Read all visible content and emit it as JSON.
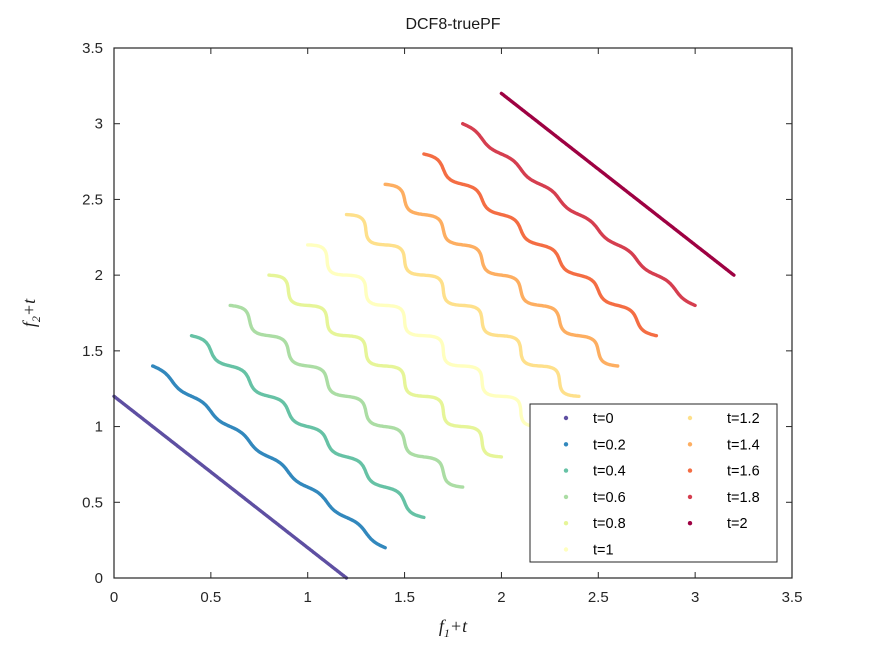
{
  "chart_data": {
    "type": "scatter",
    "title": "DCF8-truePF",
    "xlabel": "f_1+t",
    "ylabel": "f_2+t",
    "xlabel_parts": {
      "base": "f",
      "sub": "1",
      "rest": "+t"
    },
    "ylabel_parts": {
      "base": "f",
      "sub": "2",
      "rest": "+t"
    },
    "xlim": [
      0,
      3.5
    ],
    "ylim": [
      0,
      3.5
    ],
    "xticks": [
      "0",
      "0.5",
      "1",
      "1.5",
      "2",
      "2.5",
      "3",
      "3.5"
    ],
    "yticks": [
      "0",
      "0.5",
      "1",
      "1.5",
      "2",
      "2.5",
      "3",
      "3.5"
    ],
    "xtick_values": [
      0,
      0.5,
      1,
      1.5,
      2,
      2.5,
      3,
      3.5
    ],
    "ytick_values": [
      0,
      0.5,
      1,
      1.5,
      2,
      2.5,
      3,
      3.5
    ],
    "grid": false,
    "axis_color": "#262626",
    "background": "#ffffff",
    "curve_model": {
      "description": "Each series is the true Pareto front at time t shifted by t on both axes: base line from (t, t+1.2) to (t+1.2, t), i.e. points (t+s, t+1.2-s) for s in [0, s_max], with a sinusoidal ripple of 'periods' cycles applied perpendicular to the line. Ripple amplitude = amp_max*sin(pi*t/2), so t=0 and t=2 are straight lines and t=1 is the waviest.",
      "s_max": 1.2,
      "periods": 6,
      "amp_max": 0.04
    },
    "series": [
      {
        "label": "t=0",
        "t": 0,
        "color": "#5e4fa2",
        "amplitude": 0,
        "start": [
          0,
          1.2
        ],
        "end": [
          1.2,
          0
        ]
      },
      {
        "label": "t=0.2",
        "t": 0.2,
        "color": "#3288bd",
        "amplitude": 0.0124,
        "start": [
          0.2,
          1.4
        ],
        "end": [
          1.4,
          0.2
        ]
      },
      {
        "label": "t=0.4",
        "t": 0.4,
        "color": "#66c2a5",
        "amplitude": 0.0235,
        "start": [
          0.4,
          1.6
        ],
        "end": [
          1.6,
          0.4
        ]
      },
      {
        "label": "t=0.6",
        "t": 0.6,
        "color": "#abdda4",
        "amplitude": 0.0324,
        "start": [
          0.6,
          1.8
        ],
        "end": [
          1.8,
          0.6
        ]
      },
      {
        "label": "t=0.8",
        "t": 0.8,
        "color": "#e6f598",
        "amplitude": 0.038,
        "start": [
          0.8,
          2.0
        ],
        "end": [
          2.0,
          0.8
        ]
      },
      {
        "label": "t=1",
        "t": 1,
        "color": "#ffffbf",
        "amplitude": 0.04,
        "start": [
          1.0,
          2.2
        ],
        "end": [
          2.2,
          1.0
        ]
      },
      {
        "label": "t=1.2",
        "t": 1.2,
        "color": "#fee08b",
        "amplitude": 0.038,
        "start": [
          1.2,
          2.4
        ],
        "end": [
          2.4,
          1.2
        ]
      },
      {
        "label": "t=1.4",
        "t": 1.4,
        "color": "#fdae61",
        "amplitude": 0.0324,
        "start": [
          1.4,
          2.6
        ],
        "end": [
          2.6,
          1.4
        ]
      },
      {
        "label": "t=1.6",
        "t": 1.6,
        "color": "#f46d43",
        "amplitude": 0.0235,
        "start": [
          1.6,
          2.8
        ],
        "end": [
          2.8,
          1.6
        ]
      },
      {
        "label": "t=1.8",
        "t": 1.8,
        "color": "#d53e4f",
        "amplitude": 0.0124,
        "start": [
          1.8,
          3.0
        ],
        "end": [
          3.0,
          1.8
        ]
      },
      {
        "label": "t=2",
        "t": 2,
        "color": "#9e0142",
        "amplitude": 0,
        "start": [
          2.0,
          3.2
        ],
        "end": [
          3.2,
          2.0
        ]
      }
    ],
    "legend": {
      "location": "south-east",
      "columns": 2,
      "rows_per_column": [
        6,
        5
      ],
      "border_color": "#262626",
      "background": "#ffffff",
      "entries": [
        "t=0",
        "t=0.2",
        "t=0.4",
        "t=0.6",
        "t=0.8",
        "t=1",
        "t=1.2",
        "t=1.4",
        "t=1.6",
        "t=1.8",
        "t=2"
      ]
    }
  }
}
